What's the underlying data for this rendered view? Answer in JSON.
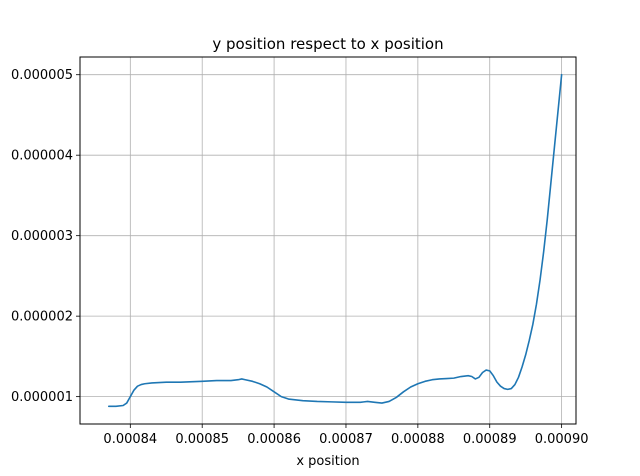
{
  "chart_data": {
    "type": "line",
    "title": "y position respect to x position",
    "xlabel": "x position",
    "ylabel": "",
    "xlim": [
      0.000833,
      0.000902
    ],
    "ylim": [
      6.6e-07,
      5.22e-06
    ],
    "grid": true,
    "legend": "none",
    "x_ticks": [
      0.00084,
      0.00085,
      0.00086,
      0.00087,
      0.00088,
      0.00089,
      0.0009
    ],
    "x_tick_labels": [
      "0.00084",
      "0.00085",
      "0.00086",
      "0.00087",
      "0.00088",
      "0.00089",
      "0.00090"
    ],
    "y_ticks": [
      1e-06,
      2e-06,
      3e-06,
      4e-06,
      5e-06
    ],
    "y_tick_labels": [
      "0.000001",
      "0.000002",
      "0.000003",
      "0.000004",
      "0.000005"
    ],
    "series": [
      {
        "color": "#1f77b4",
        "x": [
          0.000837,
          0.000838,
          0.000839,
          0.0008395,
          0.00084,
          0.0008405,
          0.000841,
          0.0008415,
          0.000842,
          0.000843,
          0.000845,
          0.000847,
          0.00085,
          0.000852,
          0.000854,
          0.000855,
          0.0008555,
          0.000856,
          0.000857,
          0.000858,
          0.000859,
          0.00086,
          0.000861,
          0.000862,
          0.000864,
          0.000866,
          0.000868,
          0.00087,
          0.000872,
          0.0008725,
          0.000873,
          0.000874,
          0.000875,
          0.000876,
          0.000877,
          0.000878,
          0.000879,
          0.00088,
          0.000881,
          0.000882,
          0.000883,
          0.000884,
          0.000885,
          0.000886,
          0.000887,
          0.0008875,
          0.000888,
          0.0008885,
          0.000889,
          0.0008895,
          0.00089,
          0.0008905,
          0.000891,
          0.0008915,
          0.000892,
          0.0008925,
          0.000893,
          0.0008935,
          0.000894,
          0.0008945,
          0.000895,
          0.0008955,
          0.000896,
          0.0008965,
          0.000897,
          0.0008975,
          0.000898,
          0.0008985,
          0.000899,
          0.0008995,
          0.0009
        ],
        "y": [
          8.8e-07,
          8.8e-07,
          8.9e-07,
          9.2e-07,
          1e-06,
          1.08e-06,
          1.13e-06,
          1.15e-06,
          1.16e-06,
          1.17e-06,
          1.18e-06,
          1.18e-06,
          1.19e-06,
          1.2e-06,
          1.2e-06,
          1.21e-06,
          1.22e-06,
          1.21e-06,
          1.19e-06,
          1.16e-06,
          1.12e-06,
          1.06e-06,
          1e-06,
          9.7e-07,
          9.5e-07,
          9.4e-07,
          9.35e-07,
          9.3e-07,
          9.3e-07,
          9.35e-07,
          9.4e-07,
          9.3e-07,
          9.2e-07,
          9.4e-07,
          9.9e-07,
          1.06e-06,
          1.12e-06,
          1.16e-06,
          1.19e-06,
          1.21e-06,
          1.22e-06,
          1.225e-06,
          1.23e-06,
          1.25e-06,
          1.26e-06,
          1.25e-06,
          1.22e-06,
          1.24e-06,
          1.3e-06,
          1.33e-06,
          1.32e-06,
          1.26e-06,
          1.18e-06,
          1.13e-06,
          1.1e-06,
          1.09e-06,
          1.1e-06,
          1.15e-06,
          1.24e-06,
          1.37e-06,
          1.52e-06,
          1.7e-06,
          1.9e-06,
          2.15e-06,
          2.45e-06,
          2.8e-06,
          3.2e-06,
          3.65e-06,
          4.1e-06,
          4.55e-06,
          5e-06
        ]
      }
    ]
  }
}
